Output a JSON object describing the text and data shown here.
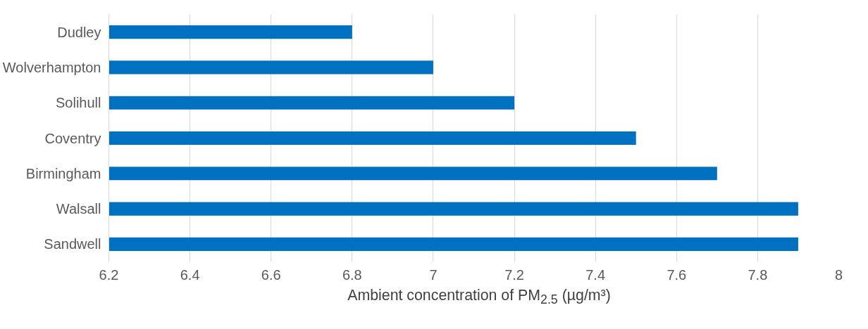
{
  "chart_data": {
    "type": "bar",
    "orientation": "horizontal",
    "xlabel": "Ambient concentration of PM$_{2.5}$ (µg/m³)",
    "categories": [
      "Dudley",
      "Wolverhampton",
      "Solihull",
      "Coventry",
      "Birmingham",
      "Walsall",
      "Sandwell"
    ],
    "values": [
      6.8,
      7.0,
      7.2,
      7.5,
      7.7,
      7.9,
      7.9
    ],
    "color": "#0070c0",
    "xlim": [
      6.2,
      8
    ],
    "xticks": [
      6.2,
      6.4,
      6.6,
      6.8,
      7,
      7.2,
      7.4,
      7.6,
      7.8,
      8
    ],
    "grid": "x"
  }
}
